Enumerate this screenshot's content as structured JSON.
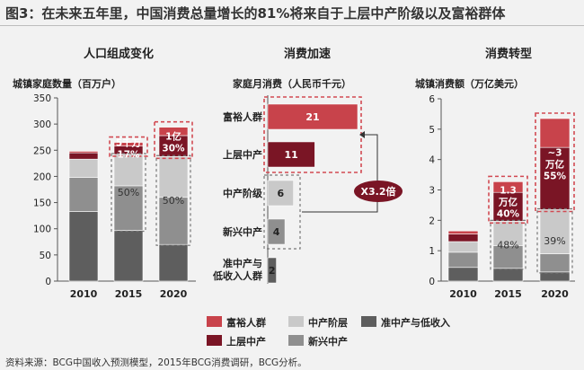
{
  "title": "图3：在未来五年里，中国消费总量增长的81%将来自于上层中产阶级以及富裕群体",
  "source": "资料来源：BCG中国收入预测模型，2015年BCG消费调研，BCG分析。",
  "colors": {
    "wealthy": "#c8434b",
    "upper_middle": "#7a1525",
    "middle": "#c9c9c9",
    "emerging": "#8f8f8f",
    "low": "#5e5e5e",
    "highlight": "#d24a52"
  },
  "legend": [
    {
      "label": "富裕人群",
      "key": "wealthy"
    },
    {
      "label": "上层中产",
      "key": "upper_middle"
    },
    {
      "label": "中产阶层",
      "key": "middle"
    },
    {
      "label": "新兴中产",
      "key": "emerging"
    },
    {
      "label": "准中产与低收入",
      "key": "low"
    }
  ],
  "chart_data": [
    {
      "type": "bar",
      "stacked": true,
      "title": "人口组成变化",
      "ylabel": "城镇家庭数量（百万户）",
      "ylim": [
        0,
        350
      ],
      "yticks": [
        0,
        50,
        100,
        150,
        200,
        250,
        300,
        350
      ],
      "categories": [
        "2010",
        "2015",
        "2020"
      ],
      "series": [
        {
          "name": "准中产与低收入",
          "key": "low",
          "values": [
            133,
            97,
            70
          ]
        },
        {
          "name": "新兴中产",
          "key": "emerging",
          "values": [
            65,
            85,
            90
          ]
        },
        {
          "name": "中产阶层",
          "key": "middle",
          "values": [
            35,
            60,
            78
          ]
        },
        {
          "name": "上层中产",
          "key": "upper_middle",
          "values": [
            12,
            16,
            40
          ]
        },
        {
          "name": "富裕人群",
          "key": "wealthy",
          "values": [
            3,
            7,
            16
          ]
        }
      ],
      "annotations": [
        {
          "category": "2015",
          "text": [
            "5千万",
            "17%"
          ]
        },
        {
          "category": "2020",
          "text": [
            "1亿",
            "30%"
          ]
        }
      ],
      "bar_labels": [
        {
          "category": "2015",
          "text": "50%"
        },
        {
          "category": "2020",
          "text": "50%"
        }
      ]
    },
    {
      "type": "bar",
      "orientation": "horizontal",
      "title": "消费加速",
      "xlabel": "家庭月消费（人民币千元）",
      "categories": [
        "富裕人群",
        "上层中产",
        "中产阶级",
        "新兴中产",
        "准中产与低收入人群"
      ],
      "keys": [
        "wealthy",
        "upper_middle",
        "middle",
        "emerging",
        "low"
      ],
      "values": [
        21,
        11,
        6,
        4,
        2
      ],
      "xlim": [
        0,
        21
      ],
      "annotation": "X3.2倍"
    },
    {
      "type": "bar",
      "stacked": true,
      "title": "消费转型",
      "ylabel": "城镇消费额（万亿美元）",
      "ylim": [
        0,
        6
      ],
      "yticks": [
        0,
        1,
        2,
        3,
        4,
        5,
        6
      ],
      "categories": [
        "2010",
        "2015",
        "2020"
      ],
      "series": [
        {
          "name": "准中产与低收入",
          "key": "low",
          "values": [
            0.45,
            0.42,
            0.3
          ]
        },
        {
          "name": "新兴中产",
          "key": "emerging",
          "values": [
            0.5,
            0.75,
            0.6
          ]
        },
        {
          "name": "中产阶层",
          "key": "middle",
          "values": [
            0.35,
            0.8,
            1.45
          ]
        },
        {
          "name": "上层中产",
          "key": "upper_middle",
          "values": [
            0.25,
            0.95,
            2.05
          ]
        },
        {
          "name": "富裕人群",
          "key": "wealthy",
          "values": [
            0.1,
            0.35,
            0.95
          ]
        }
      ],
      "annotations": [
        {
          "category": "2015",
          "text": [
            "1.3",
            "万亿",
            "40%"
          ]
        },
        {
          "category": "2020",
          "text": [
            "~3",
            "万亿",
            "55%"
          ]
        }
      ],
      "bar_labels": [
        {
          "category": "2015",
          "text": "48%"
        },
        {
          "category": "2020",
          "text": "39%"
        }
      ]
    }
  ]
}
